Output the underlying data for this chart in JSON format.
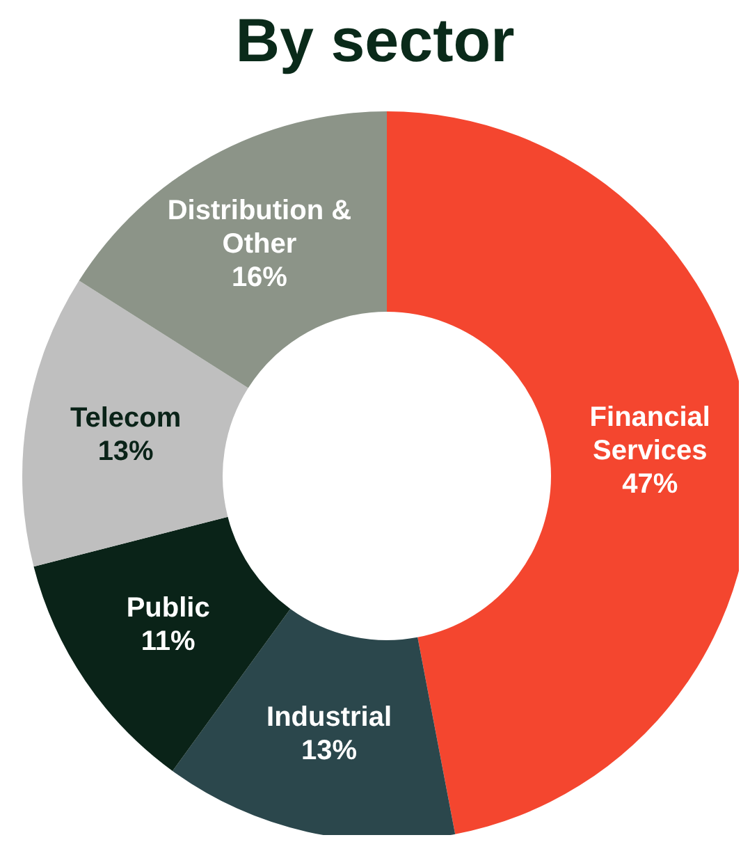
{
  "chart_data": {
    "type": "donut",
    "title": "By sector",
    "categories": [
      "Financial Services",
      "Industrial",
      "Public",
      "Telecom",
      "Distribution & Other"
    ],
    "values": [
      47,
      13,
      11,
      13,
      16
    ],
    "value_labels": [
      "47%",
      "13%",
      "11%",
      "13%",
      "16%"
    ],
    "colors": [
      "#f4462f",
      "#2b474c",
      "#0a2318",
      "#bfbfbf",
      "#8c9488"
    ],
    "legend": false
  }
}
